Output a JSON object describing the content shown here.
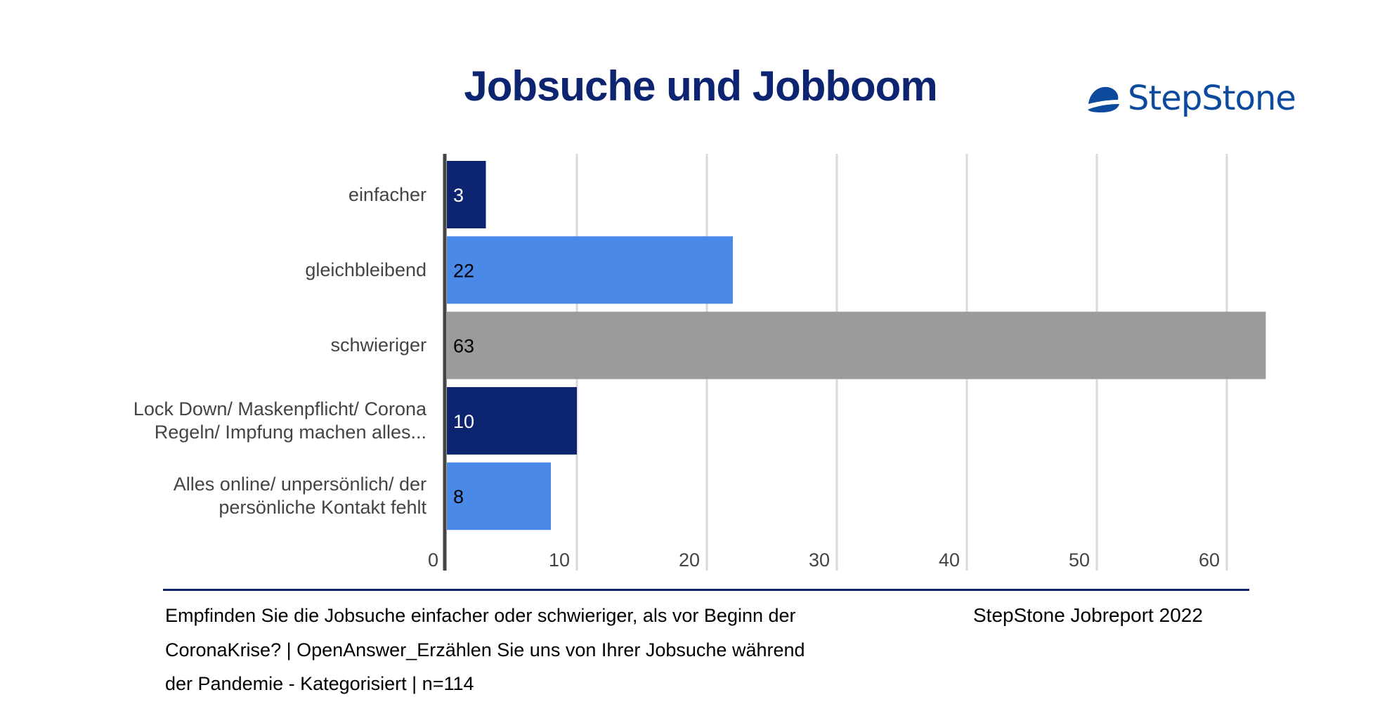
{
  "header": {
    "title": "Jobsuche und Jobboom",
    "logo_text": "StepStone",
    "logo_icon": "stepstone-stone-icon"
  },
  "colors": {
    "title": "#0d2470",
    "dark_blue": "#0d2470",
    "light_blue": "#4a89e8",
    "gray": "#9b9b9b",
    "grid": "#d9d9d9",
    "axis": "#444444",
    "logo": "#0b4a9c"
  },
  "chart_data": {
    "type": "bar",
    "orientation": "horizontal",
    "title": "Jobsuche und Jobboom",
    "categories": [
      "einfacher",
      "gleichbleibend",
      "schwieriger",
      "Lock Down/ Maskenpflicht/ Corona Regeln/ Impfung machen alles...",
      "Alles online/ unpersönlich/ der persönliche Kontakt fehlt"
    ],
    "category_lines": [
      [
        "einfacher"
      ],
      [
        "gleichbleibend"
      ],
      [
        "schwieriger"
      ],
      [
        "Lock Down/ Maskenpflicht/ Corona",
        "Regeln/ Impfung machen alles..."
      ],
      [
        "Alles online/ unpersönlich/ der",
        "persönliche Kontakt fehlt"
      ]
    ],
    "values": [
      3,
      22,
      63,
      10,
      8
    ],
    "data_labels": [
      "3",
      "22",
      "63",
      "10",
      "8"
    ],
    "bar_colors": [
      "#0d2470",
      "#4a89e8",
      "#9b9b9b",
      "#0d2470",
      "#4a89e8"
    ],
    "label_colors": [
      "#ffffff",
      "#000000",
      "#000000",
      "#ffffff",
      "#000000"
    ],
    "xlim": [
      0,
      63
    ],
    "xticks": [
      0,
      10,
      20,
      30,
      40,
      50,
      60
    ],
    "xtick_labels": [
      "0",
      "10",
      "20",
      "30",
      "40",
      "50",
      "60"
    ],
    "xlabel": "",
    "ylabel": "",
    "grid": true,
    "legend": "none"
  },
  "footer": {
    "source_lines": [
      "Empfinden Sie die Jobsuche einfacher oder schwieriger, als vor Beginn der",
      "CoronaKrise? | OpenAnswer_Erzählen Sie uns von Ihrer Jobsuche während",
      "der Pandemie - Kategorisiert |  n=114"
    ],
    "brand_source": "StepStone Jobreport 2022"
  }
}
